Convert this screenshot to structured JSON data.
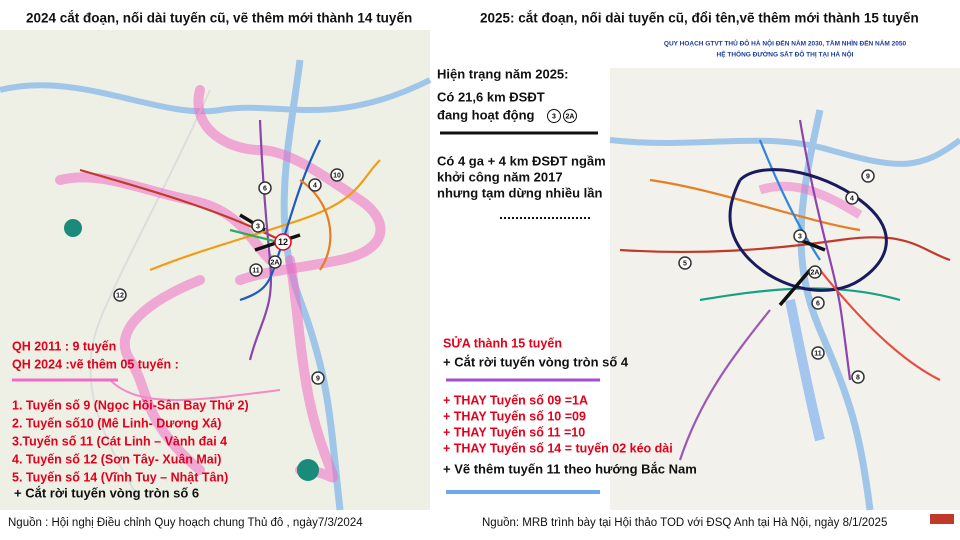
{
  "left": {
    "title": "2024 cắt đoạn, nối dài tuyến cũ, vẽ thêm mới thành 14 tuyến",
    "notes": [
      "QH 2011 : 9 tuyến",
      "QH 2024 :vẽ thêm 05 tuyến :"
    ],
    "list": [
      "1. Tuyến số 9 (Ngọc Hồi-Sân Bay Thứ 2)",
      "2. Tuyến số10 (Mê Linh- Dương Xá)",
      "3.Tuyến số 11 (Cát Linh – Vành đai 4",
      "4. Tuyến số 12 (Sơn Tây- Xuân Mai)",
      "5. Tuyến số 14 (Vĩnh Tuy –  Nhật Tân)"
    ],
    "footer_note": "+  Cắt rời tuyến vòng tròn số 6",
    "source": "Nguồn : Hội nghị Điều chỉnh Quy hoạch chung Thủ đô , ngày7/3/2024",
    "route_labels": [
      "6",
      "4",
      "10",
      "3",
      "12",
      "11",
      "2A",
      "12",
      "9"
    ]
  },
  "middle": {
    "heading": "Hiện trạng năm 2025:",
    "operating": [
      "Có 21,6 km ĐSĐT",
      "đang hoạt động"
    ],
    "operating_lines": [
      "3",
      "2A"
    ],
    "underground": [
      "Có 4 ga + 4 km ĐSĐT ngầm",
      "khởi công năm 2017",
      "nhưng tạm dừng nhiều lần"
    ]
  },
  "right": {
    "title": "2025: cắt đoạn, nối dài tuyến cũ, đổi tên,vẽ thêm mới thành 15 tuyến",
    "map_header": [
      "QUY HOẠCH GTVT THỦ ĐÔ HÀ NỘI ĐẾN NĂM 2030, TẦM NHÌN ĐẾN NĂM 2050",
      "HỆ THỐNG ĐƯỜNG SẮT ĐÔ THỊ TẠI HÀ NỘI"
    ],
    "notes": [
      "SỬA thành 15 tuyến",
      "+ Cắt rời tuyến vòng tròn số 4"
    ],
    "changes": [
      "+ THAY Tuyến số 09 =1A",
      "+ THAY Tuyến số 10 =09",
      "+ THAY Tuyến số 11 =10",
      "+ THAY Tuyến số 14 = tuyến 02 kéo dài"
    ],
    "footer_note": "+ Vẽ thêm tuyến 11 theo hướng Bắc Nam",
    "source": "Nguồn: MRB trình bày tại Hội thảo TOD với ĐSQ Anh tại Hà Nội, ngày 8/1/2025",
    "route_labels": [
      "4",
      "3",
      "2A",
      "6",
      "5",
      "8",
      "11",
      "9"
    ]
  }
}
